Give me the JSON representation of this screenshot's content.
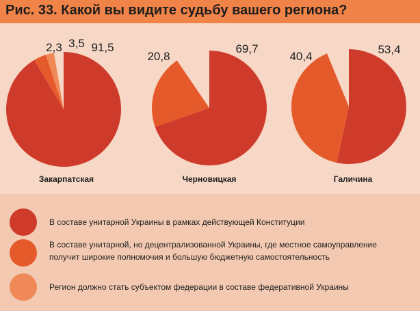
{
  "title": "Рис. 33. Какой вы видите судьбу вашего региона?",
  "colors": {
    "header_bg": "#f08347",
    "chart_bg": "#f7d8c6",
    "legend_bg": "#f3c9b1",
    "series": [
      "#cf3b2b",
      "#e55a2b",
      "#ef8a58"
    ]
  },
  "chart_data": [
    {
      "type": "pie",
      "label": "Закарпатская",
      "values": [
        91.5,
        3.5,
        2.3
      ],
      "value_labels": [
        "91,5",
        "3,5",
        "2,3"
      ]
    },
    {
      "type": "pie",
      "label": "Черновицкая",
      "values": [
        69.7,
        20.8
      ],
      "value_labels": [
        "69,7",
        "20,8"
      ]
    },
    {
      "type": "pie",
      "label": "Галичина",
      "values": [
        53.4,
        40.4
      ],
      "value_labels": [
        "53,4",
        "40,4"
      ]
    }
  ],
  "legend": [
    "В составе унитарной Украины в рамках действующей Конституции",
    "В составе унитарной, но децентрализованной Украины, где местное самоуправление получит широкие полномочия и большую бюджетную самостоятельность",
    "Регион должно стать субъектом федерации в составе федеративной Украины"
  ]
}
